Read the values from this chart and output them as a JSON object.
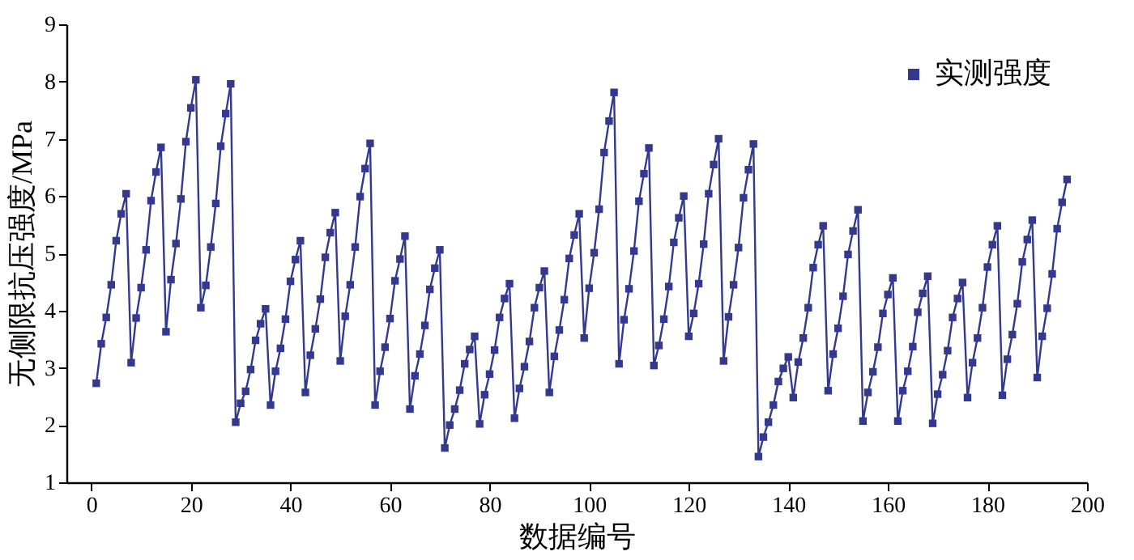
{
  "chart_data": {
    "type": "line",
    "xlabel": "数据编号",
    "ylabel": "无侧限抗压强度/MPa",
    "x": [
      1,
      2,
      3,
      4,
      5,
      6,
      7,
      8,
      9,
      10,
      11,
      12,
      13,
      14,
      15,
      16,
      17,
      18,
      19,
      20,
      21,
      22,
      23,
      24,
      25,
      26,
      27,
      28,
      29,
      30,
      31,
      32,
      33,
      34,
      35,
      36,
      37,
      38,
      39,
      40,
      41,
      42,
      43,
      44,
      45,
      46,
      47,
      48,
      49,
      50,
      51,
      52,
      53,
      54,
      55,
      56,
      57,
      58,
      59,
      60,
      61,
      62,
      63,
      64,
      65,
      66,
      67,
      68,
      69,
      70,
      71,
      72,
      73,
      74,
      75,
      76,
      77,
      78,
      79,
      80,
      81,
      82,
      83,
      84,
      85,
      86,
      87,
      88,
      89,
      90,
      91,
      92,
      93,
      94,
      95,
      96,
      97,
      98,
      99,
      100,
      101,
      102,
      103,
      104,
      105,
      106,
      107,
      108,
      109,
      110,
      111,
      112,
      113,
      114,
      115,
      116,
      117,
      118,
      119,
      120,
      121,
      122,
      123,
      124,
      125,
      126,
      127,
      128,
      129,
      130,
      131,
      132,
      133,
      134,
      135,
      136,
      137,
      138,
      139,
      140,
      141,
      142,
      143,
      144,
      145,
      146,
      147,
      148,
      149,
      150,
      151,
      152,
      153,
      154,
      155,
      156,
      157,
      158,
      159,
      160,
      161,
      162,
      163,
      164,
      165,
      166,
      167,
      168,
      169,
      170,
      171,
      172,
      173,
      174,
      175,
      176,
      177,
      178,
      179,
      180,
      181,
      182,
      183,
      184,
      185,
      186,
      187,
      188,
      189,
      190,
      191,
      192,
      193,
      194,
      195,
      196
    ],
    "series": [
      {
        "name": "实测强度",
        "color": "#33398f",
        "values": [
          2.73,
          3.42,
          3.88,
          4.45,
          5.22,
          5.69,
          6.04,
          3.09,
          3.87,
          4.4,
          5.06,
          5.92,
          6.42,
          6.85,
          3.63,
          4.54,
          5.17,
          5.95,
          6.95,
          7.54,
          8.03,
          4.05,
          4.44,
          5.11,
          5.87,
          6.87,
          7.44,
          7.96,
          2.05,
          2.38,
          2.59,
          2.97,
          3.48,
          3.77,
          4.03,
          2.35,
          2.94,
          3.34,
          3.85,
          4.51,
          4.89,
          5.22,
          2.57,
          3.22,
          3.68,
          4.2,
          4.93,
          5.36,
          5.71,
          3.12,
          3.9,
          4.45,
          5.11,
          5.99,
          6.48,
          6.92,
          2.35,
          2.94,
          3.36,
          3.86,
          4.52,
          4.9,
          5.3,
          2.28,
          2.86,
          3.24,
          3.74,
          4.37,
          4.74,
          5.06,
          1.6,
          2.0,
          2.28,
          2.61,
          3.07,
          3.32,
          3.55,
          2.02,
          2.53,
          2.89,
          3.31,
          3.88,
          4.21,
          4.47,
          2.12,
          2.64,
          3.02,
          3.46,
          4.05,
          4.4,
          4.69,
          2.57,
          3.2,
          3.66,
          4.19,
          4.91,
          5.32,
          5.69,
          3.52,
          4.39,
          5.01,
          5.77,
          6.76,
          7.31,
          7.81,
          3.07,
          3.84,
          4.38,
          5.04,
          5.91,
          6.39,
          6.84,
          3.04,
          3.39,
          3.85,
          4.42,
          5.19,
          5.62,
          6.0,
          3.55,
          3.95,
          4.47,
          5.16,
          6.04,
          6.55,
          7.0,
          3.12,
          3.89,
          4.45,
          5.1,
          5.97,
          6.46,
          6.91,
          1.45,
          1.79,
          2.05,
          2.35,
          2.76,
          2.99,
          3.19,
          2.48,
          3.1,
          3.52,
          4.05,
          4.75,
          5.15,
          5.48,
          2.6,
          3.24,
          3.69,
          4.25,
          4.98,
          5.39,
          5.76,
          2.07,
          2.57,
          2.93,
          3.36,
          3.95,
          4.28,
          4.57,
          2.07,
          2.6,
          2.94,
          3.37,
          3.97,
          4.3,
          4.6,
          2.03,
          2.54,
          2.88,
          3.3,
          3.88,
          4.21,
          4.49,
          2.48,
          3.09,
          3.52,
          4.05,
          4.76,
          5.15,
          5.48,
          2.52,
          3.15,
          3.58,
          4.12,
          4.85,
          5.24,
          5.58,
          2.83,
          3.55,
          4.04,
          4.64,
          5.43,
          5.89,
          6.29
        ]
      }
    ],
    "xlim": [
      -5,
      200
    ],
    "xticks": [
      0,
      20,
      40,
      60,
      80,
      100,
      120,
      140,
      160,
      180,
      200
    ],
    "ylim": [
      1,
      9
    ],
    "yticks": [
      1,
      2,
      3,
      4,
      5,
      6,
      7,
      8,
      9
    ],
    "grid": false,
    "legend": "top right",
    "marker": "square",
    "line_style": "solid"
  }
}
